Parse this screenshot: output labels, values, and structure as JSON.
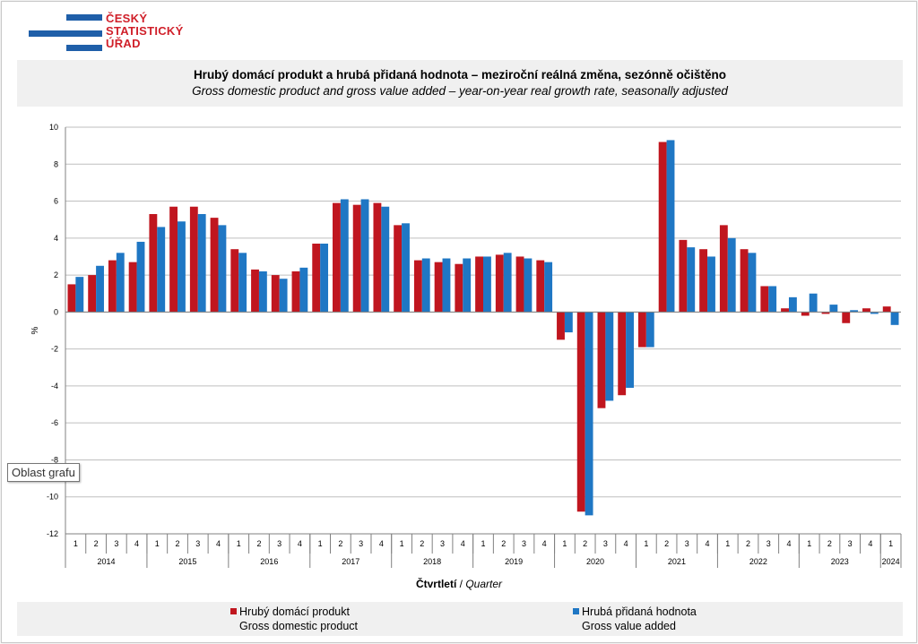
{
  "logo": {
    "line1": "ČESKÝ",
    "line2": "STATISTICKÝ",
    "line3": "ÚŘAD",
    "color": "#d0202a",
    "bar_color": "#1f5fa9"
  },
  "tooltip": "Oblast grafu",
  "chart_data": {
    "type": "bar",
    "title": "Hrubý domácí produkt a hrubá přidaná hodnota – meziroční reálná změna, sezónně očištěno",
    "subtitle": "Gross domestic product and gross value added – year-on-year real growth rate, seasonally adjusted",
    "ylabel": "%",
    "xlabel_cz": "Čtvrtletí",
    "xlabel_sep": " / ",
    "xlabel_en": "Quarter",
    "ylim": [
      -12,
      10
    ],
    "yticks": [
      "-12",
      "-10",
      "-8",
      "-6",
      "-4",
      "-2",
      "0",
      "2",
      "4",
      "6",
      "8",
      "10"
    ],
    "grid": true,
    "legend_position": "bottom",
    "years": [
      {
        "label": "2014",
        "quarters": 4
      },
      {
        "label": "2015",
        "quarters": 4
      },
      {
        "label": "2016",
        "quarters": 4
      },
      {
        "label": "2017",
        "quarters": 4
      },
      {
        "label": "2018",
        "quarters": 4
      },
      {
        "label": "2019",
        "quarters": 4
      },
      {
        "label": "2020",
        "quarters": 4
      },
      {
        "label": "2021",
        "quarters": 4
      },
      {
        "label": "2022",
        "quarters": 4
      },
      {
        "label": "2023",
        "quarters": 4
      },
      {
        "label": "2024",
        "quarters": 1
      }
    ],
    "categories": [
      "1",
      "2",
      "3",
      "4",
      "1",
      "2",
      "3",
      "4",
      "1",
      "2",
      "3",
      "4",
      "1",
      "2",
      "3",
      "4",
      "1",
      "2",
      "3",
      "4",
      "1",
      "2",
      "3",
      "4",
      "1",
      "2",
      "3",
      "4",
      "1",
      "2",
      "3",
      "4",
      "1",
      "2",
      "3",
      "4",
      "1",
      "2",
      "3",
      "4",
      "1"
    ],
    "series": [
      {
        "name": "Hrubý domácí produkt",
        "name_en": "Gross domestic product",
        "color": "#c0161f",
        "values": [
          1.5,
          2.0,
          2.8,
          2.7,
          5.3,
          5.7,
          5.7,
          5.1,
          3.4,
          2.3,
          2.0,
          2.2,
          3.7,
          5.9,
          5.8,
          5.9,
          4.7,
          2.8,
          2.7,
          2.6,
          3.0,
          3.1,
          3.0,
          2.8,
          -1.5,
          -10.8,
          -5.2,
          -4.5,
          -1.9,
          9.2,
          3.9,
          3.4,
          4.7,
          3.4,
          1.4,
          0.2,
          -0.2,
          -0.1,
          -0.6,
          0.2,
          0.3
        ]
      },
      {
        "name": "Hrubá přidaná hodnota",
        "name_en": "Gross value added",
        "color": "#1f77c4",
        "values": [
          1.9,
          2.5,
          3.2,
          3.8,
          4.6,
          4.9,
          5.3,
          4.7,
          3.2,
          2.2,
          1.8,
          2.4,
          3.7,
          6.1,
          6.1,
          5.7,
          4.8,
          2.9,
          2.9,
          2.9,
          3.0,
          3.2,
          2.9,
          2.7,
          -1.1,
          -11.0,
          -4.8,
          -4.1,
          -1.9,
          9.3,
          3.5,
          3.0,
          4.0,
          3.2,
          1.4,
          0.8,
          1.0,
          0.4,
          0.1,
          -0.1,
          -0.7
        ]
      }
    ]
  }
}
